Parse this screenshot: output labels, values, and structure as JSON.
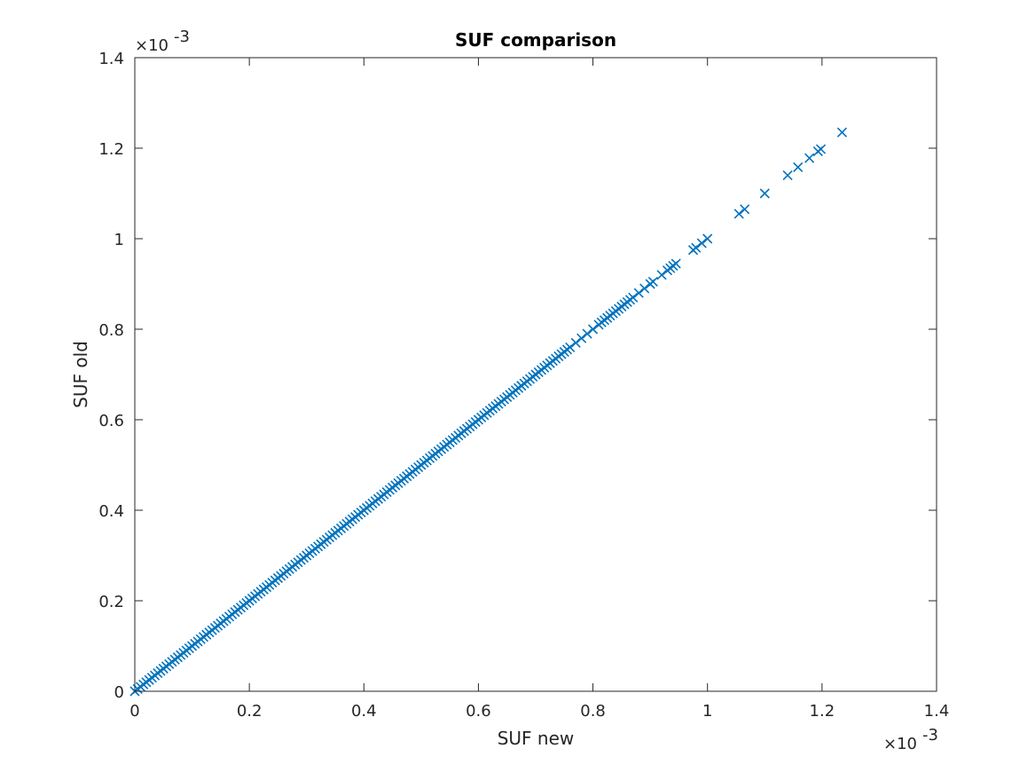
{
  "chart_data": {
    "type": "scatter",
    "title": "SUF comparison",
    "xlabel": "SUF new",
    "ylabel": "SUF old",
    "xlim": [
      0,
      0.0014
    ],
    "ylim": [
      0,
      0.0014
    ],
    "x_tick_labels": [
      "0",
      "0.2",
      "0.4",
      "0.6",
      "0.8",
      "1",
      "1.2",
      "1.4"
    ],
    "y_tick_labels": [
      "0",
      "0.2",
      "0.4",
      "0.6",
      "0.8",
      "1",
      "1.2",
      "1.4"
    ],
    "x_exponent": "×10",
    "y_exponent": "×10",
    "exponent_power": "-3",
    "marker": "x",
    "marker_color": "#0072BD",
    "grid": false,
    "series": [
      {
        "points": [
          [
            0.0,
            0.0
          ],
          [
            5e-06,
            5e-06
          ],
          [
            1e-05,
            1e-05
          ],
          [
            1.5e-05,
            1.5e-05
          ],
          [
            2e-05,
            2e-05
          ],
          [
            2.5e-05,
            2.5e-05
          ],
          [
            3e-05,
            3e-05
          ],
          [
            3.5e-05,
            3.5e-05
          ],
          [
            4e-05,
            4e-05
          ],
          [
            4.5e-05,
            4.5e-05
          ],
          [
            5e-05,
            5e-05
          ],
          [
            5.5e-05,
            5.5e-05
          ],
          [
            6e-05,
            6e-05
          ],
          [
            6.5e-05,
            6.5e-05
          ],
          [
            7e-05,
            7e-05
          ],
          [
            7.5e-05,
            7.5e-05
          ],
          [
            8e-05,
            8e-05
          ],
          [
            8.5e-05,
            8.5e-05
          ],
          [
            9e-05,
            9e-05
          ],
          [
            9.5e-05,
            9.5e-05
          ],
          [
            0.0001,
            0.0001
          ],
          [
            0.000105,
            0.000105
          ],
          [
            0.00011,
            0.00011
          ],
          [
            0.000115,
            0.000115
          ],
          [
            0.00012,
            0.00012
          ],
          [
            0.000125,
            0.000125
          ],
          [
            0.00013,
            0.00013
          ],
          [
            0.000135,
            0.000135
          ],
          [
            0.00014,
            0.00014
          ],
          [
            0.000145,
            0.000145
          ],
          [
            0.00015,
            0.00015
          ],
          [
            0.000155,
            0.000155
          ],
          [
            0.00016,
            0.00016
          ],
          [
            0.000165,
            0.000165
          ],
          [
            0.00017,
            0.00017
          ],
          [
            0.000175,
            0.000175
          ],
          [
            0.00018,
            0.00018
          ],
          [
            0.000185,
            0.000185
          ],
          [
            0.00019,
            0.00019
          ],
          [
            0.000195,
            0.000195
          ],
          [
            0.0002,
            0.0002
          ],
          [
            0.000205,
            0.000205
          ],
          [
            0.00021,
            0.00021
          ],
          [
            0.000215,
            0.000215
          ],
          [
            0.00022,
            0.00022
          ],
          [
            0.000225,
            0.000225
          ],
          [
            0.00023,
            0.00023
          ],
          [
            0.000235,
            0.000235
          ],
          [
            0.00024,
            0.00024
          ],
          [
            0.000245,
            0.000245
          ],
          [
            0.00025,
            0.00025
          ],
          [
            0.000255,
            0.000255
          ],
          [
            0.00026,
            0.00026
          ],
          [
            0.000265,
            0.000265
          ],
          [
            0.00027,
            0.00027
          ],
          [
            0.000275,
            0.000275
          ],
          [
            0.00028,
            0.00028
          ],
          [
            0.000285,
            0.000285
          ],
          [
            0.00029,
            0.00029
          ],
          [
            0.000295,
            0.000295
          ],
          [
            0.0003,
            0.0003
          ],
          [
            0.000305,
            0.000305
          ],
          [
            0.00031,
            0.00031
          ],
          [
            0.000315,
            0.000315
          ],
          [
            0.00032,
            0.00032
          ],
          [
            0.000325,
            0.000325
          ],
          [
            0.00033,
            0.00033
          ],
          [
            0.000335,
            0.000335
          ],
          [
            0.00034,
            0.00034
          ],
          [
            0.000345,
            0.000345
          ],
          [
            0.00035,
            0.00035
          ],
          [
            0.000355,
            0.000355
          ],
          [
            0.00036,
            0.00036
          ],
          [
            0.000365,
            0.000365
          ],
          [
            0.00037,
            0.00037
          ],
          [
            0.000375,
            0.000375
          ],
          [
            0.00038,
            0.00038
          ],
          [
            0.000385,
            0.000385
          ],
          [
            0.00039,
            0.00039
          ],
          [
            0.000395,
            0.000395
          ],
          [
            0.0004,
            0.0004
          ],
          [
            0.000405,
            0.000405
          ],
          [
            0.00041,
            0.00041
          ],
          [
            0.000415,
            0.000415
          ],
          [
            0.00042,
            0.00042
          ],
          [
            0.000425,
            0.000425
          ],
          [
            0.00043,
            0.00043
          ],
          [
            0.000435,
            0.000435
          ],
          [
            0.00044,
            0.00044
          ],
          [
            0.000445,
            0.000445
          ],
          [
            0.00045,
            0.00045
          ],
          [
            0.000455,
            0.000455
          ],
          [
            0.00046,
            0.00046
          ],
          [
            0.000465,
            0.000465
          ],
          [
            0.00047,
            0.00047
          ],
          [
            0.000475,
            0.000475
          ],
          [
            0.00048,
            0.00048
          ],
          [
            0.000485,
            0.000485
          ],
          [
            0.00049,
            0.00049
          ],
          [
            0.000495,
            0.000495
          ],
          [
            0.0005,
            0.0005
          ],
          [
            0.000505,
            0.000505
          ],
          [
            0.00051,
            0.00051
          ],
          [
            0.000515,
            0.000515
          ],
          [
            0.00052,
            0.00052
          ],
          [
            0.000525,
            0.000525
          ],
          [
            0.00053,
            0.00053
          ],
          [
            0.000535,
            0.000535
          ],
          [
            0.00054,
            0.00054
          ],
          [
            0.000545,
            0.000545
          ],
          [
            0.00055,
            0.00055
          ],
          [
            0.000555,
            0.000555
          ],
          [
            0.00056,
            0.00056
          ],
          [
            0.000565,
            0.000565
          ],
          [
            0.00057,
            0.00057
          ],
          [
            0.000575,
            0.000575
          ],
          [
            0.00058,
            0.00058
          ],
          [
            0.000585,
            0.000585
          ],
          [
            0.00059,
            0.00059
          ],
          [
            0.000595,
            0.000595
          ],
          [
            0.0006,
            0.0006
          ],
          [
            0.000605,
            0.000605
          ],
          [
            0.00061,
            0.00061
          ],
          [
            0.000615,
            0.000615
          ],
          [
            0.00062,
            0.00062
          ],
          [
            0.000625,
            0.000625
          ],
          [
            0.00063,
            0.00063
          ],
          [
            0.000635,
            0.000635
          ],
          [
            0.00064,
            0.00064
          ],
          [
            0.000645,
            0.000645
          ],
          [
            0.00065,
            0.00065
          ],
          [
            0.000655,
            0.000655
          ],
          [
            0.00066,
            0.00066
          ],
          [
            0.000665,
            0.000665
          ],
          [
            0.00067,
            0.00067
          ],
          [
            0.000675,
            0.000675
          ],
          [
            0.00068,
            0.00068
          ],
          [
            0.000685,
            0.000685
          ],
          [
            0.00069,
            0.00069
          ],
          [
            0.000695,
            0.000695
          ],
          [
            0.0007,
            0.0007
          ],
          [
            0.000705,
            0.000705
          ],
          [
            0.00071,
            0.00071
          ],
          [
            0.000715,
            0.000715
          ],
          [
            0.00072,
            0.00072
          ],
          [
            0.000725,
            0.000725
          ],
          [
            0.00073,
            0.00073
          ],
          [
            0.000735,
            0.000735
          ],
          [
            0.00074,
            0.00074
          ],
          [
            0.000745,
            0.000745
          ],
          [
            0.00075,
            0.00075
          ],
          [
            0.000755,
            0.000755
          ],
          [
            0.00076,
            0.00076
          ],
          [
            0.00077,
            0.00077
          ],
          [
            0.00078,
            0.00078
          ],
          [
            0.00079,
            0.00079
          ],
          [
            0.0008,
            0.0008
          ],
          [
            0.00081,
            0.00081
          ],
          [
            0.000815,
            0.000815
          ],
          [
            0.00082,
            0.00082
          ],
          [
            0.000825,
            0.000825
          ],
          [
            0.00083,
            0.00083
          ],
          [
            0.000835,
            0.000835
          ],
          [
            0.00084,
            0.00084
          ],
          [
            0.000845,
            0.000845
          ],
          [
            0.00085,
            0.00085
          ],
          [
            0.000855,
            0.000855
          ],
          [
            0.00086,
            0.00086
          ],
          [
            0.000865,
            0.000865
          ],
          [
            0.00087,
            0.00087
          ],
          [
            0.00088,
            0.00088
          ],
          [
            0.00089,
            0.00089
          ],
          [
            0.0009,
            0.0009
          ],
          [
            0.000905,
            0.000905
          ],
          [
            0.00092,
            0.00092
          ],
          [
            0.00093,
            0.00093
          ],
          [
            0.000935,
            0.000935
          ],
          [
            0.00094,
            0.00094
          ],
          [
            0.000945,
            0.000945
          ],
          [
            0.000975,
            0.000975
          ],
          [
            0.00098,
            0.00098
          ],
          [
            0.00099,
            0.00099
          ],
          [
            0.001,
            0.001
          ],
          [
            0.001055,
            0.001055
          ],
          [
            0.001065,
            0.001065
          ],
          [
            0.0011,
            0.0011
          ],
          [
            0.00114,
            0.00114
          ],
          [
            0.001158,
            0.001158
          ],
          [
            0.001178,
            0.001178
          ],
          [
            0.001193,
            0.001193
          ],
          [
            0.001198,
            0.001198
          ],
          [
            0.001235,
            0.001235
          ]
        ]
      }
    ]
  }
}
